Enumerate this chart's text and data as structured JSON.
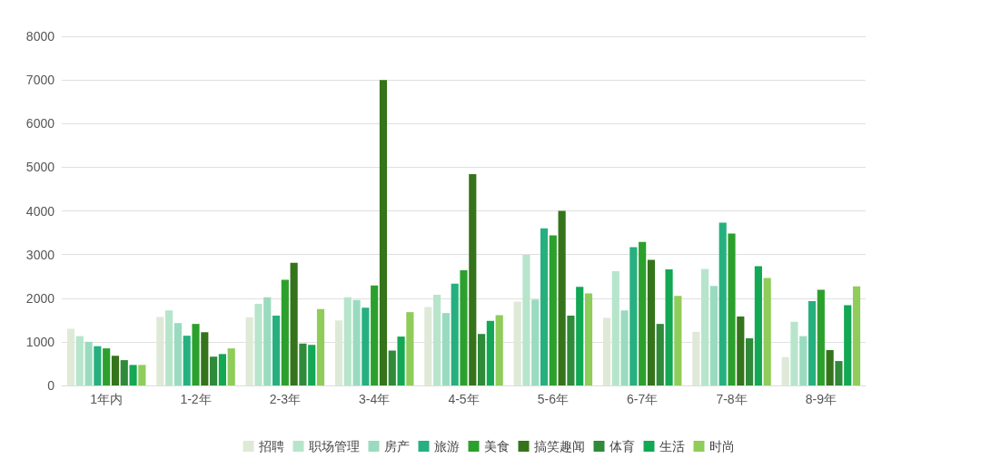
{
  "chart_data": {
    "type": "bar",
    "categories": [
      "1年内",
      "1-2年",
      "2-3年",
      "3-4年",
      "4-5年",
      "5-6年",
      "6-7年",
      "7-8年",
      "8-9年"
    ],
    "series": [
      {
        "name": "招聘",
        "color": "#dfe9d7",
        "values": [
          1300,
          1570,
          1560,
          1490,
          1800,
          1920,
          1550,
          1230,
          650
        ]
      },
      {
        "name": "职场管理",
        "color": "#b7e5cc",
        "values": [
          1130,
          1720,
          1870,
          2020,
          2080,
          2990,
          2620,
          2670,
          1460
        ]
      },
      {
        "name": "房产",
        "color": "#9adbbf",
        "values": [
          1000,
          1430,
          2020,
          1960,
          1660,
          1970,
          1720,
          2280,
          1130
        ]
      },
      {
        "name": "旅游",
        "color": "#27b07f",
        "values": [
          900,
          1140,
          1600,
          1780,
          2330,
          3600,
          3170,
          3730,
          1930
        ]
      },
      {
        "name": "美食",
        "color": "#2ca02c",
        "values": [
          850,
          1410,
          2420,
          2290,
          2640,
          3440,
          3290,
          3480,
          2190
        ]
      },
      {
        "name": "搞笑趣闻",
        "color": "#35741a",
        "values": [
          680,
          1220,
          2810,
          7000,
          4840,
          4000,
          2880,
          1580,
          810
        ]
      },
      {
        "name": "体育",
        "color": "#2f8a3a",
        "values": [
          580,
          660,
          960,
          800,
          1180,
          1600,
          1410,
          1080,
          560
        ]
      },
      {
        "name": "生活",
        "color": "#12a854",
        "values": [
          470,
          720,
          930,
          1120,
          1480,
          2260,
          2660,
          2730,
          1840
        ]
      },
      {
        "name": "时尚",
        "color": "#8fcc5a",
        "values": [
          470,
          850,
          1750,
          1680,
          1610,
          2110,
          2050,
          2460,
          2270
        ]
      }
    ],
    "ylim": [
      0,
      8000
    ],
    "yticks": [
      0,
      1000,
      2000,
      3000,
      4000,
      5000,
      6000,
      7000,
      8000
    ],
    "grid": "y",
    "legend": "bottom"
  }
}
